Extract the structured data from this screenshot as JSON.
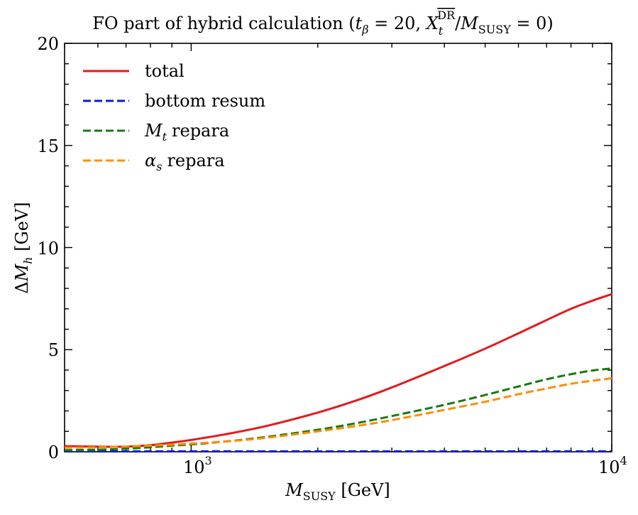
{
  "chart_data": {
    "type": "line",
    "title": {
      "text": "FO part of hybrid calculation (",
      "tb_sym": "t",
      "tb_sub": "β",
      "tb_eq": " = 20, ",
      "xt_sym": "X",
      "xt_sub": "t",
      "xt_sup": "DR",
      "slash": "/",
      "m_sym": "M",
      "m_sub": "SUSY",
      "m_tail": " = 0)"
    },
    "xlabel": {
      "sym": "M",
      "sub": "SUSY",
      "unit": " [GeV]"
    },
    "ylabel": {
      "delta": "Δ",
      "sym": "M",
      "sub": "h",
      "unit": " [GeV]"
    },
    "xscale": "log",
    "xlim": [
      500,
      10000
    ],
    "ylim": [
      0,
      20
    ],
    "yticks": [
      {
        "value": 0,
        "label": "0"
      },
      {
        "value": 5,
        "label": "5"
      },
      {
        "value": 10,
        "label": "10"
      },
      {
        "value": 15,
        "label": "15"
      },
      {
        "value": 20,
        "label": "20"
      }
    ],
    "xticks": [
      {
        "value": 1000,
        "base": "10",
        "exp": "3"
      },
      {
        "value": 10000,
        "base": "10",
        "exp": "4"
      }
    ],
    "x": [
      500,
      600,
      700,
      800,
      900,
      1000,
      1200,
      1500,
      2000,
      2500,
      3000,
      4000,
      5000,
      6000,
      7000,
      8000,
      9000,
      10000
    ],
    "series": [
      {
        "name": "total",
        "label": "total",
        "color": "#e41a1c",
        "dash": "solid",
        "values": [
          0.28,
          0.25,
          0.25,
          0.32,
          0.45,
          0.58,
          0.85,
          1.25,
          1.92,
          2.55,
          3.15,
          4.2,
          5.05,
          5.8,
          6.45,
          7.0,
          7.4,
          7.72
        ]
      },
      {
        "name": "bottom-resum",
        "label": "bottom resum",
        "color": "#0a1ccf",
        "dash": "dashed",
        "values": [
          0.02,
          0.02,
          0.02,
          0.02,
          0.02,
          0.02,
          0.02,
          0.02,
          0.02,
          0.02,
          0.02,
          0.02,
          0.02,
          0.02,
          0.02,
          0.02,
          0.02,
          0.02
        ]
      },
      {
        "name": "mt-repara",
        "label": "repara",
        "label_sym": "M",
        "label_sub": "t",
        "color": "#1a7a10",
        "dash": "dashed",
        "values": [
          0.08,
          0.1,
          0.15,
          0.22,
          0.3,
          0.36,
          0.5,
          0.72,
          1.08,
          1.42,
          1.75,
          2.3,
          2.78,
          3.2,
          3.55,
          3.8,
          3.98,
          4.08
        ]
      },
      {
        "name": "alphas-repara",
        "label": "repara",
        "label_sym": "α",
        "label_sub": "s",
        "color": "#ff8c00",
        "dash": "dashed",
        "values": [
          0.2,
          0.22,
          0.26,
          0.3,
          0.35,
          0.4,
          0.5,
          0.68,
          1.0,
          1.28,
          1.55,
          2.05,
          2.45,
          2.82,
          3.1,
          3.33,
          3.48,
          3.6
        ]
      }
    ],
    "legend_position": "top-left",
    "grid": false
  }
}
